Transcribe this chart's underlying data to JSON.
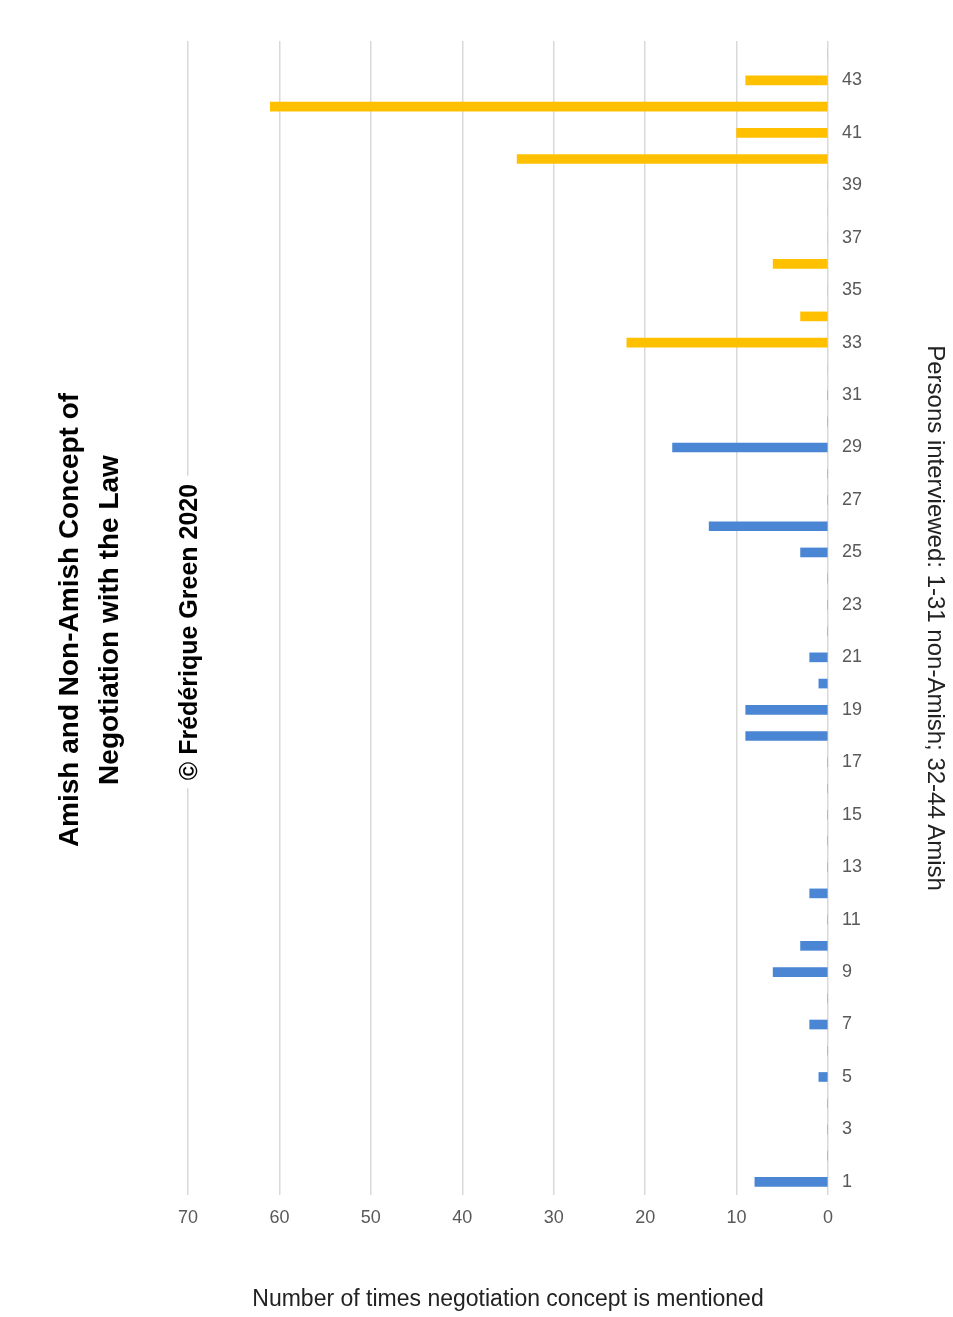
{
  "chart_data": {
    "type": "bar",
    "orientation": "horizontal",
    "title": "Amish and Non-Amish Concept of Negotiation with the Law",
    "annotations": [
      "© Frédérique Green 2020"
    ],
    "ylabel": "Persons interviewed: 1-31 non-Amish; 32-44 Amish",
    "xlabel": "Number of times negotiation concept is mentioned",
    "categories": [
      null,
      "43",
      null,
      "41",
      null,
      "39",
      null,
      "37",
      null,
      "35",
      null,
      "33",
      null,
      "31",
      null,
      "29",
      null,
      "27",
      null,
      "25",
      null,
      "23",
      null,
      "21",
      null,
      "19",
      null,
      "17",
      null,
      "15",
      null,
      "13",
      null,
      "11",
      null,
      "9",
      null,
      "7",
      null,
      "5",
      null,
      "3",
      null,
      "1"
    ],
    "values": [
      0,
      9,
      61,
      10,
      34,
      0,
      0,
      0,
      6,
      0,
      3,
      22,
      0,
      0,
      0,
      17,
      0,
      0,
      13,
      3,
      0,
      0,
      0,
      2,
      1,
      9,
      9,
      0,
      0,
      0,
      0,
      0,
      2,
      0,
      3,
      6,
      0,
      2,
      0,
      1,
      0,
      0,
      0,
      8
    ],
    "colors": [
      "#ffc000",
      "#ffc000",
      "#ffc000",
      "#ffc000",
      "#ffc000",
      "#ffc000",
      "#ffc000",
      "#ffc000",
      "#ffc000",
      "#ffc000",
      "#ffc000",
      "#ffc000",
      "#ffc000",
      "#4a86d4",
      "#4a86d4",
      "#4a86d4",
      "#4a86d4",
      "#4a86d4",
      "#4a86d4",
      "#4a86d4",
      "#4a86d4",
      "#4a86d4",
      "#4a86d4",
      "#4a86d4",
      "#4a86d4",
      "#4a86d4",
      "#4a86d4",
      "#4a86d4",
      "#4a86d4",
      "#4a86d4",
      "#4a86d4",
      "#4a86d4",
      "#4a86d4",
      "#4a86d4",
      "#4a86d4",
      "#4a86d4",
      "#4a86d4",
      "#4a86d4",
      "#4a86d4",
      "#4a86d4",
      "#4a86d4",
      "#4a86d4",
      "#4a86d4",
      "#4a86d4"
    ],
    "xlim": [
      70,
      0
    ],
    "xticks": [
      70,
      60,
      50,
      40,
      30,
      20,
      10,
      0
    ],
    "grid": "x"
  }
}
